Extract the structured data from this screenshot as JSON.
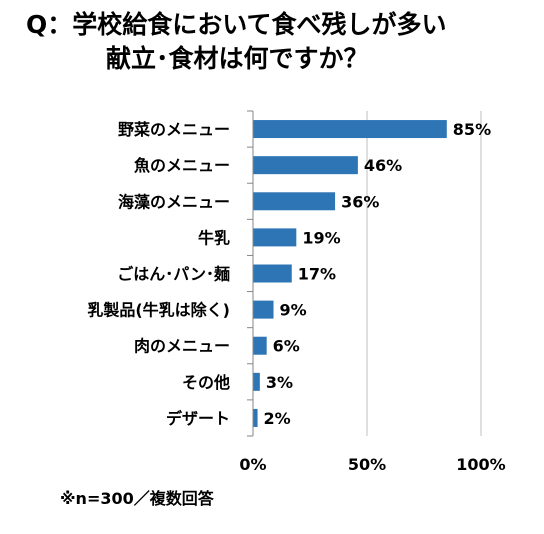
{
  "title_line1": "Q：学校給食において食べ残しが多い",
  "title_line2": "献立･食材は何ですか？",
  "note": "※n=300／複数回答",
  "chart_data": {
    "type": "bar",
    "orientation": "horizontal",
    "title": "Q：学校給食において食べ残しが多い献立･食材は何ですか？",
    "categories": [
      "野菜のメニュー",
      "魚のメニュー",
      "海藻のメニュー",
      "牛乳",
      "ごはん･パン･麺",
      "乳製品(牛乳は除く)",
      "肉のメニュー",
      "その他",
      "デザート"
    ],
    "values": [
      85,
      46,
      36,
      19,
      17,
      9,
      6,
      3,
      2
    ],
    "value_labels": [
      "85%",
      "46%",
      "36%",
      "19%",
      "17%",
      "9%",
      "6%",
      "3%",
      "2%"
    ],
    "xlim": [
      0,
      100
    ],
    "xticks": [
      0,
      50,
      100
    ],
    "xtick_labels": [
      "0%",
      "50%",
      "100%"
    ],
    "grid": true,
    "bar_color": "#2E75B6",
    "grid_color": "#BFBFBF",
    "axis_color": "#868686"
  }
}
